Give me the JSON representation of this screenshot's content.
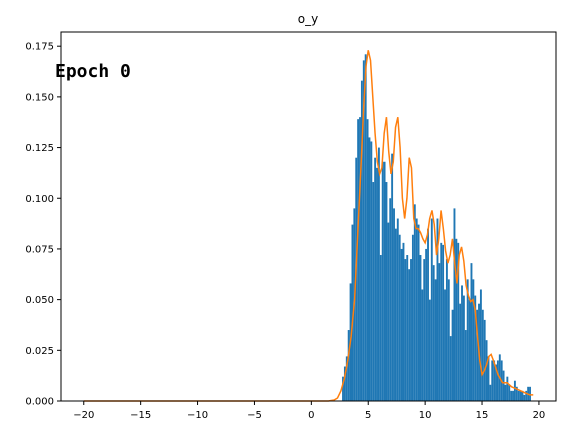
{
  "chart_data": {
    "type": "bar",
    "title": "o_y",
    "annotation": "Epoch 0",
    "xlim": [
      -22,
      21.5
    ],
    "ylim": [
      0,
      0.182
    ],
    "xticks": [
      -20,
      -15,
      -10,
      -5,
      0,
      5,
      10,
      15,
      20
    ],
    "yticks": [
      0.0,
      0.025,
      0.05,
      0.075,
      0.1,
      0.125,
      0.15,
      0.175
    ],
    "ytick_labels": [
      "0.000",
      "0.025",
      "0.050",
      "0.075",
      "0.100",
      "0.125",
      "0.150",
      "0.175"
    ],
    "grid": false,
    "colors": {
      "histogram": "#1f77b4",
      "kde": "#ff7f0e"
    },
    "histogram": {
      "bin_width": 0.166,
      "bin_starts": [
        2.7,
        2.866,
        3.032,
        3.198,
        3.364,
        3.53,
        3.696,
        3.862,
        4.028,
        4.194,
        4.36,
        4.526,
        4.692,
        4.858,
        5.024,
        5.19,
        5.356,
        5.522,
        5.688,
        5.854,
        6.02,
        6.186,
        6.352,
        6.518,
        6.684,
        6.85,
        7.016,
        7.182,
        7.348,
        7.514,
        7.68,
        7.846,
        8.012,
        8.178,
        8.344,
        8.51,
        8.676,
        8.842,
        9.008,
        9.174,
        9.34,
        9.506,
        9.672,
        9.838,
        10.004,
        10.17,
        10.336,
        10.502,
        10.668,
        10.834,
        11.0,
        11.166,
        11.332,
        11.498,
        11.664,
        11.83,
        11.996,
        12.162,
        12.328,
        12.494,
        12.66,
        12.826,
        12.992,
        13.158,
        13.324,
        13.49,
        13.656,
        13.822,
        13.988,
        14.154,
        14.32,
        14.486,
        14.652,
        14.818,
        14.984,
        15.15,
        15.316,
        15.482,
        15.648,
        15.814,
        15.98,
        16.146,
        16.312,
        16.478,
        16.644,
        16.81,
        16.976,
        17.142,
        17.308,
        17.474,
        17.64,
        17.806,
        17.972,
        18.138,
        18.304,
        18.47,
        18.636,
        18.802,
        18.968,
        19.134
      ],
      "heights": [
        0.012,
        0.017,
        0.022,
        0.035,
        0.058,
        0.087,
        0.095,
        0.12,
        0.139,
        0.14,
        0.158,
        0.168,
        0.171,
        0.139,
        0.13,
        0.128,
        0.108,
        0.12,
        0.115,
        0.125,
        0.072,
        0.118,
        0.118,
        0.108,
        0.088,
        0.1,
        0.122,
        0.095,
        0.085,
        0.09,
        0.082,
        0.075,
        0.078,
        0.07,
        0.072,
        0.065,
        0.07,
        0.082,
        0.097,
        0.09,
        0.087,
        0.072,
        0.055,
        0.07,
        0.075,
        0.085,
        0.05,
        0.09,
        0.067,
        0.06,
        0.09,
        0.068,
        0.078,
        0.077,
        0.055,
        0.07,
        0.06,
        0.032,
        0.045,
        0.095,
        0.08,
        0.078,
        0.048,
        0.057,
        0.052,
        0.035,
        0.06,
        0.05,
        0.068,
        0.06,
        0.052,
        0.045,
        0.048,
        0.055,
        0.045,
        0.04,
        0.03,
        0.022,
        0.008,
        0.02,
        0.02,
        0.018,
        0.02,
        0.023,
        0.02,
        0.015,
        0.008,
        0.012,
        0.008,
        0.005,
        0.005,
        0.01,
        0.007,
        0.005,
        0.005,
        0.005,
        0.003,
        0.005,
        0.007,
        0.007
      ]
    },
    "kde": {
      "x": [
        -20,
        -18,
        -16,
        -14,
        -12,
        -10,
        -8,
        -6,
        -4,
        -2,
        0,
        1,
        1.5,
        2,
        2.3,
        2.6,
        2.9,
        3.2,
        3.5,
        3.8,
        4.1,
        4.4,
        4.6,
        4.8,
        5.0,
        5.2,
        5.4,
        5.6,
        5.8,
        6.0,
        6.2,
        6.4,
        6.6,
        6.8,
        7.0,
        7.2,
        7.4,
        7.6,
        7.8,
        8.0,
        8.2,
        8.4,
        8.6,
        8.8,
        9.0,
        9.2,
        9.4,
        9.6,
        9.8,
        10.0,
        10.2,
        10.4,
        10.6,
        10.8,
        11.0,
        11.2,
        11.4,
        11.6,
        11.8,
        12.0,
        12.2,
        12.4,
        12.6,
        12.8,
        13.0,
        13.2,
        13.4,
        13.6,
        13.8,
        14.0,
        14.2,
        14.4,
        14.6,
        14.8,
        15.0,
        15.2,
        15.4,
        15.6,
        15.8,
        16.0,
        16.4,
        16.8,
        17.2,
        17.6,
        18.0,
        18.4,
        18.8,
        19.2,
        19.5
      ],
      "y": [
        0,
        0,
        0,
        0,
        0,
        0,
        0,
        0,
        0,
        0,
        0,
        0,
        0,
        0.0005,
        0.0015,
        0.005,
        0.011,
        0.02,
        0.032,
        0.05,
        0.085,
        0.12,
        0.145,
        0.165,
        0.173,
        0.168,
        0.15,
        0.132,
        0.118,
        0.112,
        0.115,
        0.132,
        0.14,
        0.123,
        0.112,
        0.118,
        0.135,
        0.14,
        0.125,
        0.1,
        0.09,
        0.1,
        0.12,
        0.115,
        0.09,
        0.085,
        0.085,
        0.083,
        0.08,
        0.078,
        0.082,
        0.09,
        0.094,
        0.087,
        0.072,
        0.08,
        0.094,
        0.085,
        0.074,
        0.068,
        0.072,
        0.08,
        0.068,
        0.058,
        0.072,
        0.076,
        0.069,
        0.057,
        0.052,
        0.049,
        0.05,
        0.045,
        0.032,
        0.02,
        0.013,
        0.015,
        0.018,
        0.022,
        0.023,
        0.02,
        0.013,
        0.009,
        0.009,
        0.007,
        0.006,
        0.005,
        0.004,
        0.003,
        0.003
      ]
    }
  }
}
